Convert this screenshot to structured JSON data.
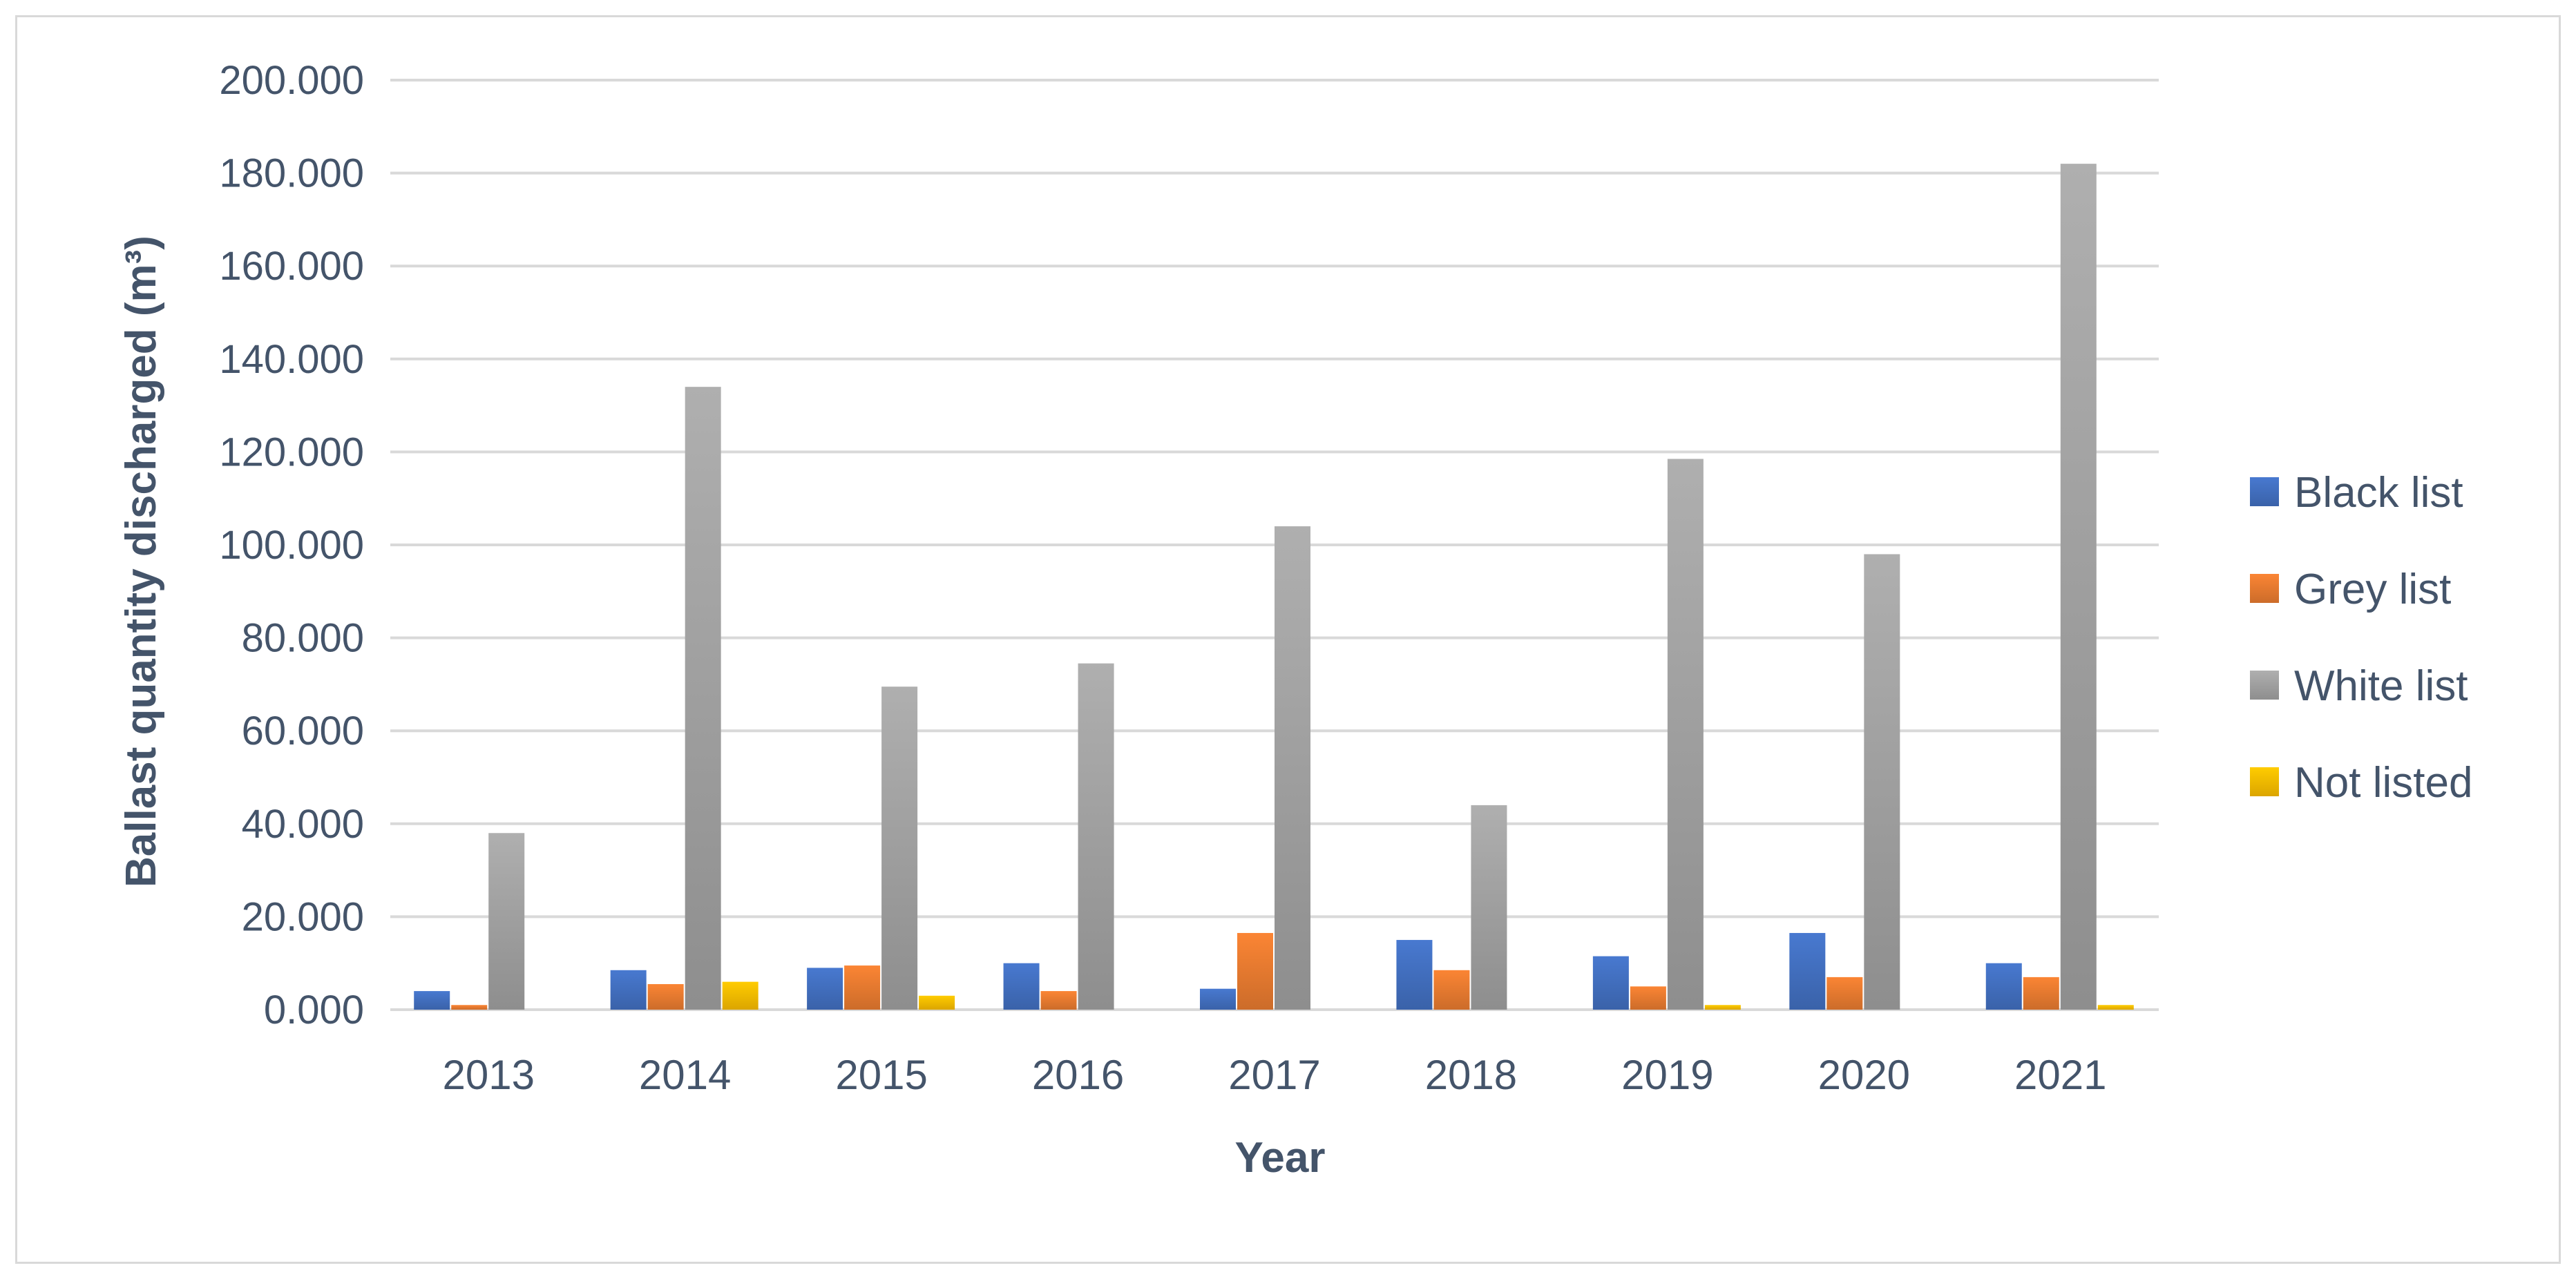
{
  "chart_data": {
    "type": "bar",
    "title": "",
    "xlabel": "Year",
    "ylabel": "Ballast quantity discharged (m³)",
    "ylim": [
      0,
      200
    ],
    "ytick_step": 20,
    "ytick_labels": [
      "0.000",
      "20.000",
      "40.000",
      "60.000",
      "80.000",
      "100.000",
      "120.000",
      "140.000",
      "160.000",
      "180.000",
      "200.000"
    ],
    "grid": true,
    "legend_position": "right",
    "categories": [
      "2013",
      "2014",
      "2015",
      "2016",
      "2017",
      "2018",
      "2019",
      "2020",
      "2021"
    ],
    "series": [
      {
        "name": "Black list",
        "color": "#4472c4",
        "values": [
          4.0,
          8.5,
          9.0,
          10.0,
          4.5,
          15.0,
          11.5,
          16.5,
          10.0
        ]
      },
      {
        "name": "Grey list",
        "color": "#ed7d31",
        "values": [
          1.0,
          5.5,
          9.5,
          4.0,
          16.5,
          8.5,
          5.0,
          7.0,
          7.0
        ]
      },
      {
        "name": "White list",
        "color": "#a5a5a5",
        "values": [
          38.0,
          134.0,
          69.5,
          74.5,
          104.0,
          44.0,
          118.5,
          98.0,
          182.0
        ]
      },
      {
        "name": "Not listed",
        "color": "#ffc000",
        "values": [
          0.0,
          6.0,
          3.0,
          0.0,
          0.0,
          0.0,
          1.0,
          0.0,
          1.0
        ]
      }
    ]
  }
}
